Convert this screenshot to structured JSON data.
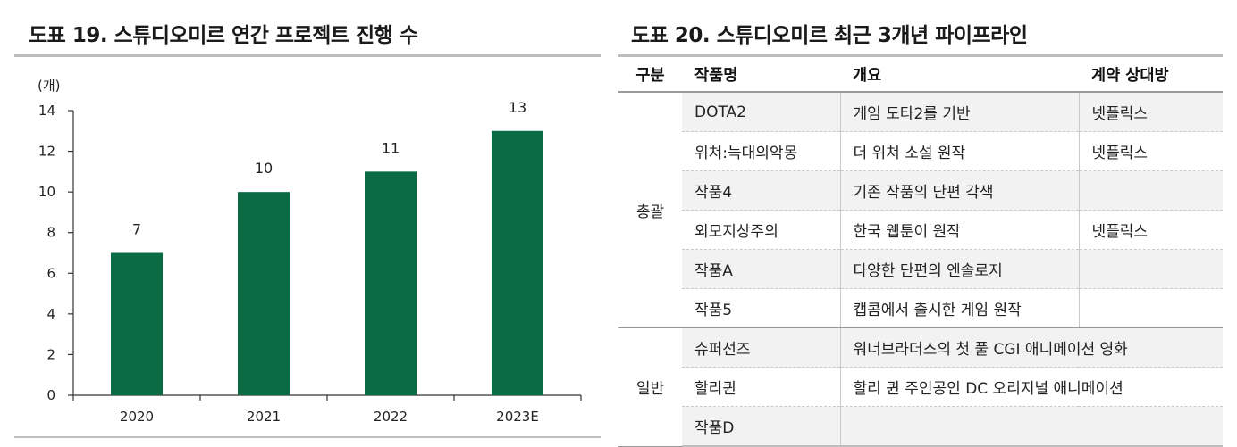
{
  "left_panel": {
    "title": "도표 19. 스튜디오미르 연간 프로젝트 진행 수"
  },
  "right_panel": {
    "title": "도표 20. 스튜디오미르 최근 3개년 파이프라인"
  },
  "chart_data": {
    "type": "bar",
    "unit_label": "(개)",
    "categories": [
      "2020",
      "2021",
      "2022",
      "2023E"
    ],
    "values": [
      7,
      10,
      11,
      13
    ],
    "data_labels": [
      "7",
      "10",
      "11",
      "13"
    ],
    "ylim": [
      0,
      14
    ],
    "yticks": [
      "0",
      "2",
      "4",
      "6",
      "8",
      "10",
      "12",
      "14"
    ],
    "bar_color": "#0b6b44",
    "grid": false,
    "legend": "none"
  },
  "pipeline_table": {
    "headers": [
      "구분",
      "작품명",
      "개요",
      "계약 상대방"
    ],
    "groups": [
      {
        "name": "총괄",
        "rows": [
          {
            "title": "DOTA2",
            "summary": "게임 도타2를 기반",
            "partner": "넷플릭스"
          },
          {
            "title": "위쳐:늑대의악몽",
            "summary": "더 위쳐 소설 원작",
            "partner": "넷플릭스"
          },
          {
            "title": "작품4",
            "summary": "기존 작품의 단편 각색",
            "partner": ""
          },
          {
            "title": "외모지상주의",
            "summary": "한국 웹툰이 원작",
            "partner": "넷플릭스"
          },
          {
            "title": "작품A",
            "summary": "다양한 단편의 엔솔로지",
            "partner": ""
          },
          {
            "title": "작품5",
            "summary": "캡콤에서 출시한 게임 원작",
            "partner": ""
          }
        ]
      },
      {
        "name": "일반",
        "rows": [
          {
            "title": "슈퍼선즈",
            "summary": "워너브라더스의 첫 풀 CGI 애니메이션 영화",
            "partner": ""
          },
          {
            "title": "할리퀸",
            "summary": "할리 퀸 주인공인 DC 오리지널 애니메이션",
            "partner": ""
          },
          {
            "title": "작품D",
            "summary": "",
            "partner": ""
          }
        ]
      }
    ]
  }
}
